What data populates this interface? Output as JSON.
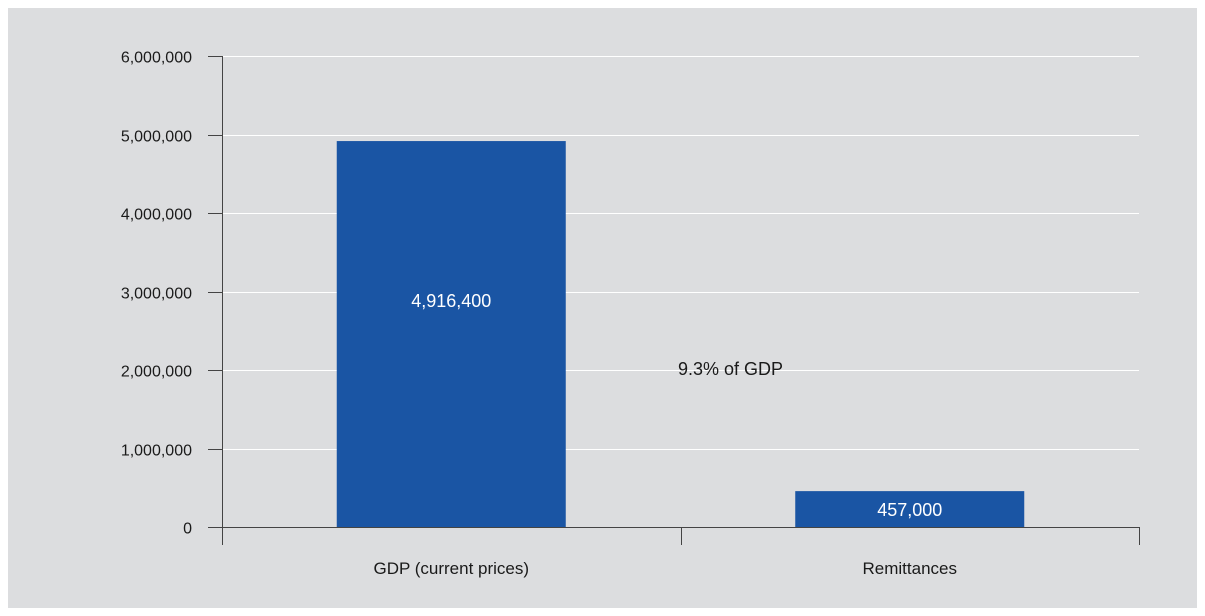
{
  "chart_data": {
    "type": "bar",
    "title": "",
    "xlabel": "",
    "ylabel": "",
    "categories": [
      "GDP (current prices)",
      "Remittances"
    ],
    "values": [
      4916400,
      457000
    ],
    "data_labels": [
      "4,916,400",
      "457,000"
    ],
    "ylim": [
      0,
      6000000
    ],
    "yticks": [
      0,
      1000000,
      2000000,
      3000000,
      4000000,
      5000000,
      6000000
    ],
    "ytick_labels": [
      "0",
      "1,000,000",
      "2,000,000",
      "3,000,000",
      "4,000,000",
      "5,000,000",
      "6,000,000"
    ],
    "grid": true,
    "legend": "none",
    "annotation": "9.3% of GDP",
    "colors": {
      "bar": "#1a55a4",
      "background": "#dcdddf",
      "grid": "#ffffff",
      "axis": "#444444"
    }
  }
}
